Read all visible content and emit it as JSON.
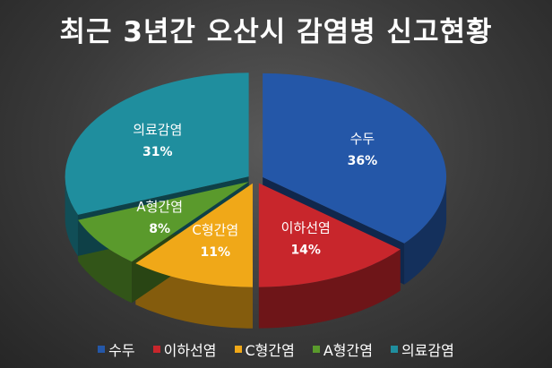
{
  "title": "최근 3년간 오산시 감염병 신고현황",
  "chart_data": {
    "type": "pie",
    "title": "최근 3년간 오산시 감염병 신고현황",
    "categories": [
      "수두",
      "이하선염",
      "C형간염",
      "A형간염",
      "의료감염"
    ],
    "values": [
      36,
      14,
      11,
      8,
      31
    ],
    "labels": [
      "36%",
      "14%",
      "11%",
      "8%",
      "31%"
    ],
    "colors": [
      "#2457a8",
      "#c8262c",
      "#f0a818",
      "#5a9a2c",
      "#1f8e9e"
    ],
    "style": "3d-exploded",
    "legend_position": "bottom"
  }
}
